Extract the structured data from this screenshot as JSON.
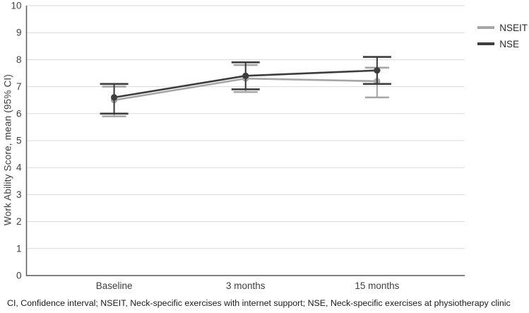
{
  "chart_data": {
    "type": "line",
    "title": "",
    "ylabel": "Work Ability Score, mean (95% CI)",
    "xlabel": "",
    "categories": [
      "Baseline",
      "3 months",
      "15 months"
    ],
    "ylim": [
      0,
      10
    ],
    "yticks": [
      0,
      1,
      2,
      3,
      4,
      5,
      6,
      7,
      8,
      9,
      10
    ],
    "grid": true,
    "legend_position": "top-right",
    "error_bars": "95% CI",
    "series": [
      {
        "name": "NSEIT",
        "color": "#a6a6a6",
        "values": [
          6.5,
          7.3,
          7.2
        ],
        "ci_low": [
          5.9,
          6.8,
          6.6
        ],
        "ci_high": [
          7.0,
          7.8,
          7.7
        ]
      },
      {
        "name": "NSE",
        "color": "#3d3d3d",
        "values": [
          6.6,
          7.4,
          7.6
        ],
        "ci_low": [
          6.0,
          6.9,
          7.1
        ],
        "ci_high": [
          7.1,
          7.9,
          8.1
        ]
      }
    ]
  },
  "footer_note": "CI, Confidence interval; NSEIT, Neck-specific exercises with internet support; NSE, Neck-specific exercises at physiotherapy clinic",
  "colors": {
    "gridline": "#d9d9d9",
    "axis": "#595959",
    "tick_text": "#3f3f3f"
  }
}
